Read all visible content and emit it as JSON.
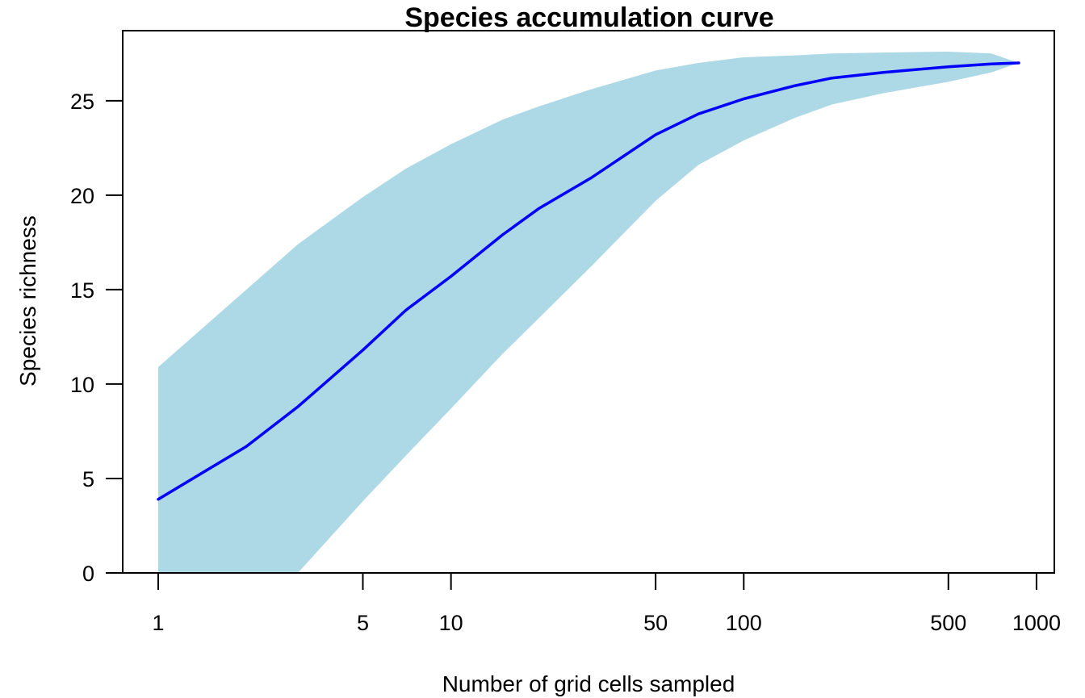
{
  "chart_data": {
    "type": "area",
    "title": "Species accumulation curve",
    "xlabel": "Number of grid cells sampled",
    "ylabel": "Species richness",
    "x_scale": "log",
    "xlim": [
      1,
      870
    ],
    "ylim": [
      0,
      27
    ],
    "x_ticks": [
      1,
      5,
      10,
      50,
      100,
      500,
      1000
    ],
    "x_tick_labels": [
      "1",
      "5",
      "10",
      "50",
      "100",
      "500",
      "1000"
    ],
    "y_ticks": [
      0,
      5,
      10,
      15,
      20,
      25
    ],
    "y_tick_labels": [
      "0",
      "5",
      "10",
      "15",
      "20",
      "25"
    ],
    "grid": false,
    "legend": "none",
    "colors": {
      "band": "#add8e6",
      "line": "#0000ff",
      "axis": "#000000"
    },
    "series": [
      {
        "kind": "line",
        "x": [
          1,
          2,
          3,
          5,
          7,
          10,
          15,
          20,
          30,
          50,
          70,
          100,
          150,
          200,
          300,
          500,
          700,
          870
        ],
        "y": [
          3.9,
          6.7,
          8.8,
          11.8,
          13.9,
          15.7,
          17.9,
          19.3,
          20.9,
          23.2,
          24.3,
          25.1,
          25.8,
          26.2,
          26.5,
          26.8,
          26.95,
          27.0
        ]
      },
      {
        "kind": "band",
        "x": [
          1,
          2,
          3,
          5,
          7,
          10,
          15,
          20,
          30,
          50,
          70,
          100,
          150,
          200,
          300,
          500,
          700,
          870
        ],
        "upper": [
          10.9,
          15.0,
          17.4,
          19.9,
          21.4,
          22.7,
          24.0,
          24.7,
          25.6,
          26.6,
          27.0,
          27.3,
          27.4,
          27.5,
          27.55,
          27.6,
          27.5,
          27.0
        ],
        "lower": [
          0,
          0,
          0,
          3.8,
          6.2,
          8.7,
          11.6,
          13.5,
          16.2,
          19.7,
          21.6,
          22.9,
          24.1,
          24.8,
          25.4,
          26.0,
          26.5,
          27.0
        ]
      }
    ]
  }
}
